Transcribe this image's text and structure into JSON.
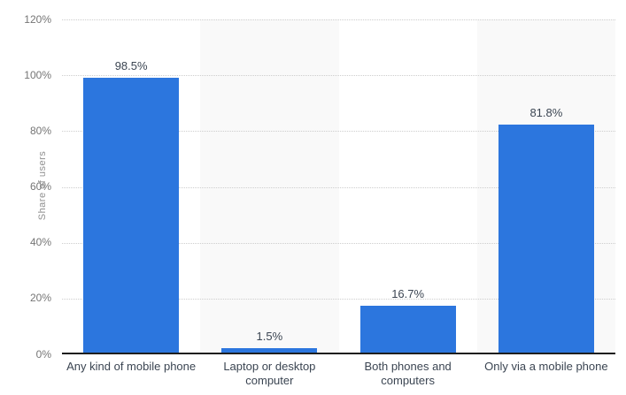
{
  "chart_data": {
    "type": "bar",
    "title": "",
    "xlabel": "",
    "ylabel": "Share of users",
    "categories": [
      "Any kind of mobile phone",
      "Laptop or desktop computer",
      "Both phones and computers",
      "Only via a mobile phone"
    ],
    "category_lines": [
      [
        "Any kind of mobile phone"
      ],
      [
        "Laptop or desktop",
        "computer"
      ],
      [
        "Both phones and",
        "computers"
      ],
      [
        "Only via a mobile phone"
      ]
    ],
    "values": [
      98.5,
      1.5,
      16.7,
      81.8
    ],
    "value_labels": [
      "98.5%",
      "1.5%",
      "16.7%",
      "81.8%"
    ],
    "ylim": [
      0,
      120
    ],
    "ytick_values": [
      0,
      20,
      40,
      60,
      80,
      100,
      120
    ],
    "ytick_labels": [
      "0%",
      "20%",
      "40%",
      "60%",
      "80%",
      "100%",
      "120%"
    ],
    "grid": "horizontal-dotted",
    "legend": "none",
    "plot_bands": "alternating vertical columns, odd columns shaded",
    "bar_color": "#2c76de",
    "band_color": "#f9f9f9",
    "gridline_color": "#cdcdcd",
    "axis_line_color": "#1e1e1e",
    "label_color": "#3b4552",
    "tick_color": "#757575"
  }
}
